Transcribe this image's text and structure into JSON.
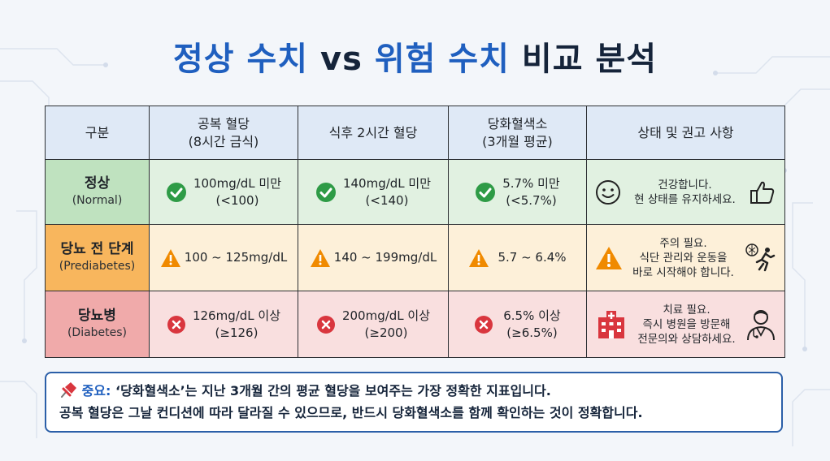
{
  "title": {
    "part1": "정상 수치",
    "part2": "vs",
    "part3": "위험 수치",
    "part4": "비교 분석"
  },
  "table": {
    "headers": [
      {
        "line1": "구분",
        "line2": ""
      },
      {
        "line1": "공복 혈당",
        "line2": "(8시간 금식)"
      },
      {
        "line1": "식후 2시간 혈당",
        "line2": ""
      },
      {
        "line1": "당화혈색소",
        "line2": "(3개월 평균)"
      },
      {
        "line1": "상태 및 권고 사항",
        "line2": ""
      }
    ],
    "rows": [
      {
        "label": "정상",
        "label_sub": "(Normal)",
        "fasting": {
          "line1": "100mg/dL 미만",
          "line2": "(<100)"
        },
        "postmeal": {
          "line1": "140mg/dL 미만",
          "line2": "(<140)"
        },
        "hba1c": {
          "line1": "5.7% 미만",
          "line2": "(<5.7%)"
        },
        "advice": {
          "line1": "건강합니다.",
          "line2": "현 상태를 유지하세요.",
          "line3": ""
        },
        "status_icon": "check-circle-icon",
        "advice_icons": [
          "smile-icon",
          "thumbs-up-icon"
        ]
      },
      {
        "label": "당뇨 전 단계",
        "label_sub": "(Prediabetes)",
        "fasting": {
          "line1": "100 ~ 125mg/dL",
          "line2": ""
        },
        "postmeal": {
          "line1": "140 ~ 199mg/dL",
          "line2": ""
        },
        "hba1c": {
          "line1": "5.7 ~ 6.4%",
          "line2": ""
        },
        "advice": {
          "line1": "주의 필요.",
          "line2": "식단 관리와 운동을",
          "line3": "바로 시작해야 합니다."
        },
        "status_icon": "warning-icon",
        "advice_icons": [
          "warning-icon",
          "running-person-icon"
        ]
      },
      {
        "label": "당뇨병",
        "label_sub": "(Diabetes)",
        "fasting": {
          "line1": "126mg/dL 이상",
          "line2": "(≥126)"
        },
        "postmeal": {
          "line1": "200mg/dL 이상",
          "line2": "(≥200)"
        },
        "hba1c": {
          "line1": "6.5% 이상",
          "line2": "(≥6.5%)"
        },
        "advice": {
          "line1": "치료 필요.",
          "line2": "즉시 병원을 방문해",
          "line3": "전문의와 상담하세요."
        },
        "status_icon": "x-circle-icon",
        "advice_icons": [
          "hospital-icon",
          "doctor-icon"
        ]
      }
    ]
  },
  "note": {
    "icon": "pushpin-icon",
    "important_label": "중요:",
    "line1": "‘당화혈색소’는 지난 3개월 간의 평균 혈당을 보여주는 가장 정확한 지표입니다.",
    "line2": "공복 혈당은 그날 컨디션에 따라 달라질 수 있으므로, 반드시 당화혈색소를 함께 확인하는 것이 정확합니다."
  },
  "colors": {
    "title_blue": "#1f5fbf",
    "normal": "#bfe2bf",
    "prediabetes": "#f8b65d",
    "diabetes": "#f0aaaa",
    "check": "#2e9b46",
    "warning": "#f08a00",
    "danger": "#d9363e"
  }
}
